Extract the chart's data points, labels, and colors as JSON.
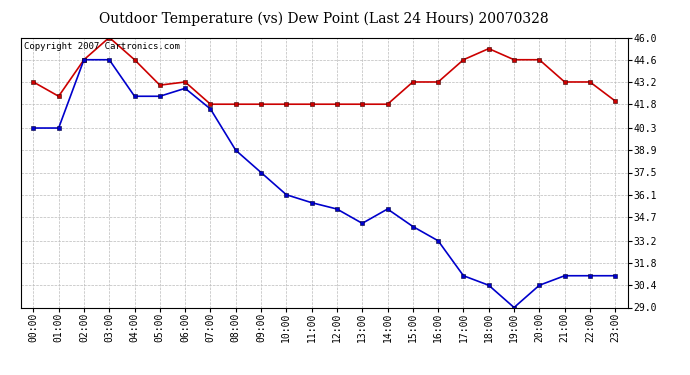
{
  "title": "Outdoor Temperature (vs) Dew Point (Last 24 Hours) 20070328",
  "copyright_text": "Copyright 2007 Cartronics.com",
  "hours": [
    0,
    1,
    2,
    3,
    4,
    5,
    6,
    7,
    8,
    9,
    10,
    11,
    12,
    13,
    14,
    15,
    16,
    17,
    18,
    19,
    20,
    21,
    22,
    23
  ],
  "hour_labels": [
    "00:00",
    "01:00",
    "02:00",
    "03:00",
    "04:00",
    "05:00",
    "06:00",
    "07:00",
    "08:00",
    "09:00",
    "10:00",
    "11:00",
    "12:00",
    "13:00",
    "14:00",
    "15:00",
    "16:00",
    "17:00",
    "18:00",
    "19:00",
    "20:00",
    "21:00",
    "22:00",
    "23:00"
  ],
  "temp_red": [
    43.2,
    42.3,
    44.6,
    46.0,
    44.6,
    43.0,
    43.2,
    41.8,
    41.8,
    41.8,
    41.8,
    41.8,
    41.8,
    41.8,
    41.8,
    43.2,
    43.2,
    44.6,
    45.3,
    44.6,
    44.6,
    43.2,
    43.2,
    42.0
  ],
  "dew_blue": [
    40.3,
    40.3,
    44.6,
    44.6,
    42.3,
    42.3,
    42.8,
    41.5,
    38.9,
    37.5,
    36.1,
    35.6,
    35.2,
    34.3,
    35.2,
    34.1,
    33.2,
    31.0,
    30.4,
    29.0,
    30.4,
    31.0,
    31.0,
    31.0
  ],
  "ylim_min": 29.0,
  "ylim_max": 46.0,
  "yticks": [
    29.0,
    30.4,
    31.8,
    33.2,
    34.7,
    36.1,
    37.5,
    38.9,
    40.3,
    41.8,
    43.2,
    44.6,
    46.0
  ],
  "temp_color": "#cc0000",
  "dew_color": "#0000cc",
  "bg_color": "#ffffff",
  "grid_color": "#bbbbbb",
  "title_fontsize": 10,
  "tick_fontsize": 7,
  "copyright_fontsize": 6.5,
  "marker_size": 3,
  "linewidth": 1.2
}
